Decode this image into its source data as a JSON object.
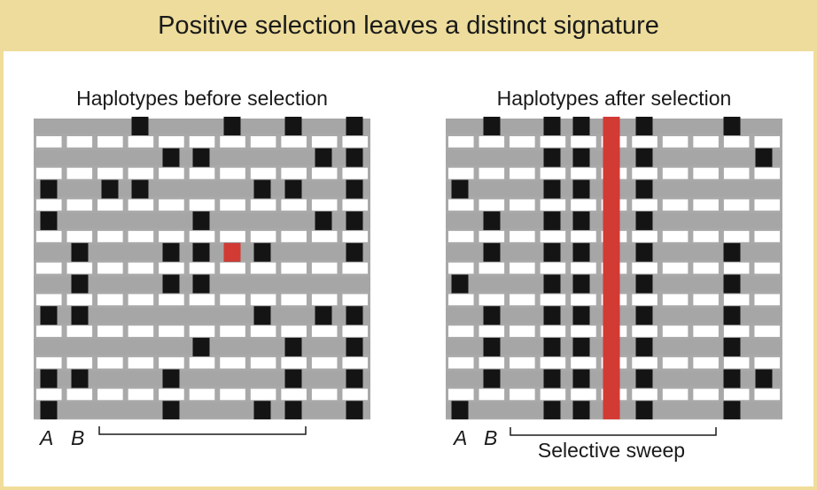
{
  "header": {
    "title": "Positive selection leaves a distinct signature"
  },
  "colors": {
    "header_bg": "#eddc9b",
    "frame": "#f0dd9a",
    "chromosome": "#a6a6a6",
    "allele": "#141414",
    "selected_allele": "#d23a34"
  },
  "panels": [
    {
      "title": "Haplotypes before selection",
      "locus_labels": [
        "A",
        "B"
      ],
      "bracket_label": "",
      "rows": [
        [
          3,
          6,
          8,
          11
        ],
        [
          4,
          5,
          9,
          10
        ],
        [
          0,
          2,
          3,
          7,
          8,
          10,
          11
        ],
        [
          0,
          5,
          9,
          11
        ],
        [
          1,
          4,
          5,
          6,
          7,
          10
        ],
        [
          1,
          4,
          5
        ],
        [
          0,
          1,
          7,
          9,
          10
        ],
        [
          5,
          8,
          11
        ],
        [
          0,
          1,
          4,
          8,
          10
        ],
        [
          0,
          4,
          7,
          8,
          11
        ]
      ],
      "selected_site": {
        "row": 4,
        "col": 6
      }
    },
    {
      "title": "Haplotypes after selection",
      "locus_labels": [
        "A",
        "B"
      ],
      "bracket_label": "Selective sweep",
      "rows": [
        [
          1,
          3,
          4,
          5,
          6,
          9
        ],
        [
          3,
          4,
          5,
          6,
          10
        ],
        [
          0,
          3,
          4,
          5,
          6
        ],
        [
          1,
          3,
          4,
          5,
          6
        ],
        [
          1,
          3,
          4,
          5,
          6,
          9
        ],
        [
          0,
          3,
          4,
          5,
          6,
          9
        ],
        [
          1,
          3,
          4,
          5,
          6,
          9
        ],
        [
          1,
          3,
          4,
          5,
          6,
          9
        ],
        [
          1,
          3,
          4,
          5,
          6,
          9,
          10
        ],
        [
          0,
          3,
          4,
          5,
          6,
          9
        ]
      ],
      "selected_col": 5
    }
  ]
}
